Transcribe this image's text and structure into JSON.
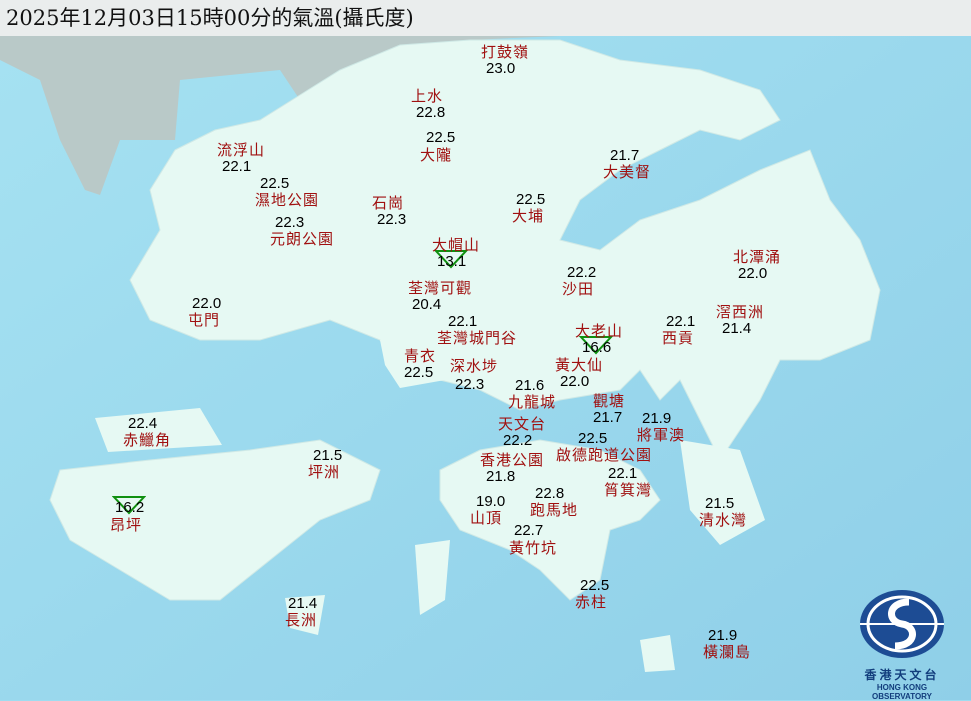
{
  "title": "2025年12月03日15時00分的氣溫(攝氏度)",
  "colors": {
    "sea": "#9fdcf0",
    "land": "#e6f9f3",
    "station_name": "#a01010",
    "temperature": "#000000",
    "min_marker": "#109010"
  },
  "logo": {
    "name_zh": "香港天文台",
    "name_en": "HONG KONG OBSERVATORY"
  },
  "stations": [
    {
      "name": "打鼓嶺",
      "temp": "23.0"
    },
    {
      "name": "上水",
      "temp": "22.8"
    },
    {
      "name": "大隴",
      "temp": "22.5"
    },
    {
      "name": "流浮山",
      "temp": "22.1"
    },
    {
      "name": "濕地公園",
      "temp": "22.5"
    },
    {
      "name": "元朗公園",
      "temp": "22.3"
    },
    {
      "name": "石崗",
      "temp": "22.3"
    },
    {
      "name": "大美督",
      "temp": "21.7"
    },
    {
      "name": "大埔",
      "temp": "22.5"
    },
    {
      "name": "大帽山",
      "temp": "13.1",
      "marker": "min-triangle"
    },
    {
      "name": "沙田",
      "temp": "22.2"
    },
    {
      "name": "北潭涌",
      "temp": "22.0"
    },
    {
      "name": "荃灣可觀",
      "temp": "20.4"
    },
    {
      "name": "屯門",
      "temp": "22.0"
    },
    {
      "name": "荃灣城門谷",
      "temp": "22.1"
    },
    {
      "name": "大老山",
      "temp": "16.6",
      "marker": "min-triangle"
    },
    {
      "name": "西貢",
      "temp": "22.1"
    },
    {
      "name": "滘西洲",
      "temp": "21.4"
    },
    {
      "name": "青衣",
      "temp": "22.5"
    },
    {
      "name": "深水埗",
      "temp": "22.3"
    },
    {
      "name": "黃大仙",
      "temp": "22.0"
    },
    {
      "name": "九龍城",
      "temp": "21.6"
    },
    {
      "name": "觀塘",
      "temp": "21.7"
    },
    {
      "name": "將軍澳",
      "temp": "21.9"
    },
    {
      "name": "天文台",
      "temp": "22.2"
    },
    {
      "name": "啟德跑道公園",
      "temp": "22.5"
    },
    {
      "name": "香港公園",
      "temp": "21.8"
    },
    {
      "name": "筲箕灣",
      "temp": "22.1"
    },
    {
      "name": "跑馬地",
      "temp": "22.8"
    },
    {
      "name": "山頂",
      "temp": "19.0"
    },
    {
      "name": "黃竹坑",
      "temp": "22.7"
    },
    {
      "name": "清水灣",
      "temp": "21.5"
    },
    {
      "name": "赤鱲角",
      "temp": "22.4"
    },
    {
      "name": "坪洲",
      "temp": "21.5"
    },
    {
      "name": "昂坪",
      "temp": "16.2",
      "marker": "min-triangle"
    },
    {
      "name": "赤柱",
      "temp": "22.5"
    },
    {
      "name": "長洲",
      "temp": "21.4"
    },
    {
      "name": "橫瀾島",
      "temp": "21.9"
    }
  ]
}
